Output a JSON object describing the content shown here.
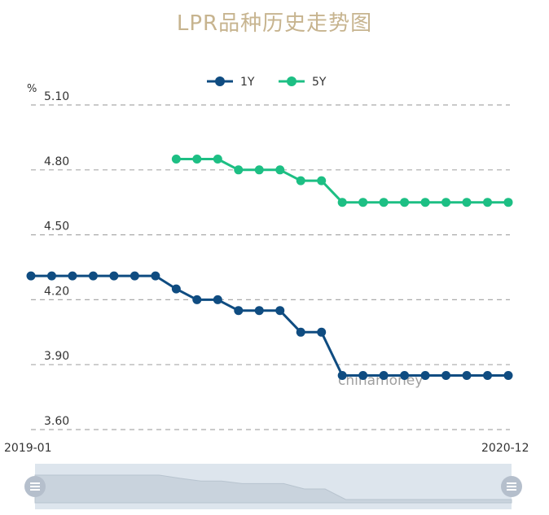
{
  "chart_data": {
    "type": "line",
    "title": "LPR品种历史走势图",
    "unit": "%",
    "x_start_label": "2019-01",
    "x_end_label": "2020-12",
    "watermark": "chinamoney",
    "ylim": [
      3.6,
      5.1
    ],
    "yticks": [
      "5.10",
      "4.80",
      "4.50",
      "4.20",
      "3.90",
      "3.60"
    ],
    "ytick_values": [
      5.1,
      4.8,
      4.5,
      4.2,
      3.9,
      3.6
    ],
    "grid": true,
    "legend_position": "top-center",
    "point_count": 24,
    "series": [
      {
        "name": "1Y",
        "color": "#0f4c81",
        "values": [
          4.31,
          4.31,
          4.31,
          4.31,
          4.31,
          4.31,
          4.31,
          4.25,
          4.2,
          4.2,
          4.15,
          4.15,
          4.15,
          4.05,
          4.05,
          3.85,
          3.85,
          3.85,
          3.85,
          3.85,
          3.85,
          3.85,
          3.85,
          3.85
        ]
      },
      {
        "name": "5Y",
        "color": "#1dbf84",
        "values": [
          null,
          null,
          null,
          null,
          null,
          null,
          null,
          4.85,
          4.85,
          4.85,
          4.8,
          4.8,
          4.8,
          4.75,
          4.75,
          4.65,
          4.65,
          4.65,
          4.65,
          4.65,
          4.65,
          4.65,
          4.65,
          4.65
        ]
      }
    ]
  }
}
